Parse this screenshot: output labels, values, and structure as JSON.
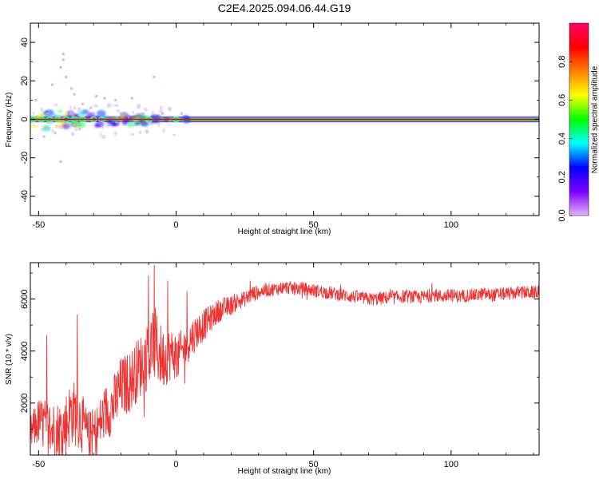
{
  "title": "C2E4.2025.094.06.44.G19",
  "chart_data": [
    {
      "type": "heatmap",
      "xlabel": "Height of straight line (km)",
      "ylabel": "Frequency (Hz)",
      "xlim": [
        -53,
        132
      ],
      "ylim": [
        -50,
        50
      ],
      "xticks": [
        -50,
        0,
        50,
        100
      ],
      "yticks": [
        -40,
        -20,
        0,
        20,
        40
      ],
      "colorbar": {
        "label": "Normalized spectral amplitude",
        "range": [
          0,
          1
        ],
        "ticks": [
          0.0,
          0.2,
          0.4,
          0.6,
          0.8
        ],
        "colors": [
          "#e6b3ff",
          "#7b00ff",
          "#0000ff",
          "#00ffff",
          "#00ff00",
          "#ffff00",
          "#ff8000",
          "#ff0000",
          "#ff0066"
        ]
      },
      "dominant_frequency_hz": 0,
      "noise_extent_km": [
        -53,
        5
      ],
      "scatter_events": [
        {
          "x": -41,
          "y": 34
        },
        {
          "x": -41,
          "y": 31
        },
        {
          "x": -42,
          "y": 27
        },
        {
          "x": -40,
          "y": 22
        },
        {
          "x": -45,
          "y": 18
        },
        {
          "x": -38,
          "y": 16
        },
        {
          "x": -37,
          "y": 13
        },
        {
          "x": -34,
          "y": 8
        },
        {
          "x": -31,
          "y": 6
        },
        {
          "x": -29,
          "y": 12
        },
        {
          "x": -26,
          "y": 11
        },
        {
          "x": -22,
          "y": 10
        },
        {
          "x": -16,
          "y": 11
        },
        {
          "x": -8,
          "y": 22
        },
        {
          "x": -51,
          "y": 10
        },
        {
          "x": -48,
          "y": -9
        },
        {
          "x": -42,
          "y": -22
        },
        {
          "x": -44,
          "y": -7
        },
        {
          "x": -35,
          "y": -5
        },
        {
          "x": -30,
          "y": 3
        },
        {
          "x": -20,
          "y": 3
        },
        {
          "x": -12,
          "y": 3
        },
        {
          "x": -5,
          "y": 3
        },
        {
          "x": 2,
          "y": 3
        }
      ]
    },
    {
      "type": "line",
      "xlabel": "Height of straight line (km)",
      "ylabel": "SNR (10 * v/v)",
      "xlim": [
        -53,
        132
      ],
      "ylim": [
        0,
        7400
      ],
      "xticks": [
        -50,
        0,
        50,
        100
      ],
      "yticks": [
        2000,
        4000,
        6000
      ],
      "series": [
        {
          "color": "#ee3333",
          "x": [
            -53,
            -50,
            -47,
            -44,
            -41,
            -38,
            -35,
            -32,
            -29,
            -26,
            -23,
            -20,
            -17,
            -14,
            -11,
            -8,
            -5,
            -2,
            1,
            4,
            7,
            10,
            13,
            16,
            19,
            22,
            25,
            28,
            31,
            34,
            37,
            40,
            43,
            46,
            49,
            52,
            55,
            58,
            61,
            64,
            67,
            70,
            73,
            76,
            79,
            82,
            85,
            88,
            91,
            94,
            97,
            100,
            103,
            106,
            109,
            112,
            115,
            118,
            121,
            124,
            127,
            130,
            132
          ],
          "y": [
            800,
            1300,
            1100,
            900,
            1000,
            1700,
            1400,
            700,
            900,
            1600,
            1900,
            2600,
            2800,
            3300,
            3700,
            4300,
            3700,
            3900,
            3800,
            4300,
            4700,
            5000,
            5300,
            5600,
            5700,
            5900,
            6000,
            6200,
            6300,
            6350,
            6400,
            6450,
            6400,
            6400,
            6350,
            6300,
            6250,
            6200,
            6150,
            6100,
            6050,
            6000,
            6000,
            6050,
            6050,
            6100,
            6100,
            6050,
            6100,
            6150,
            6100,
            6150,
            6100,
            6150,
            6150,
            6200,
            6150,
            6200,
            6200,
            6250,
            6250,
            6250,
            6300
          ],
          "spread": [
            700,
            900,
            1100,
            1200,
            1200,
            1300,
            1200,
            1000,
            1000,
            1100,
            1100,
            1200,
            1200,
            1200,
            1300,
            1500,
            1200,
            1000,
            900,
            800,
            700,
            600,
            500,
            450,
            400,
            350,
            300,
            300,
            250,
            250,
            250,
            250,
            250,
            250,
            250,
            250,
            250,
            250,
            250,
            250,
            250,
            250,
            250,
            250,
            250,
            250,
            250,
            250,
            250,
            250,
            250,
            250,
            250,
            250,
            250,
            250,
            250,
            250,
            250,
            250,
            250,
            250,
            250
          ],
          "peaks": [
            {
              "x": -47,
              "y": 4600
            },
            {
              "x": -36,
              "y": 5400
            },
            {
              "x": -8,
              "y": 7300
            },
            {
              "x": -10,
              "y": 6900
            },
            {
              "x": -3,
              "y": 6700
            },
            {
              "x": 4,
              "y": 6300
            },
            {
              "x": 27,
              "y": 6700
            },
            {
              "x": 93,
              "y": 6600
            }
          ]
        }
      ]
    }
  ]
}
